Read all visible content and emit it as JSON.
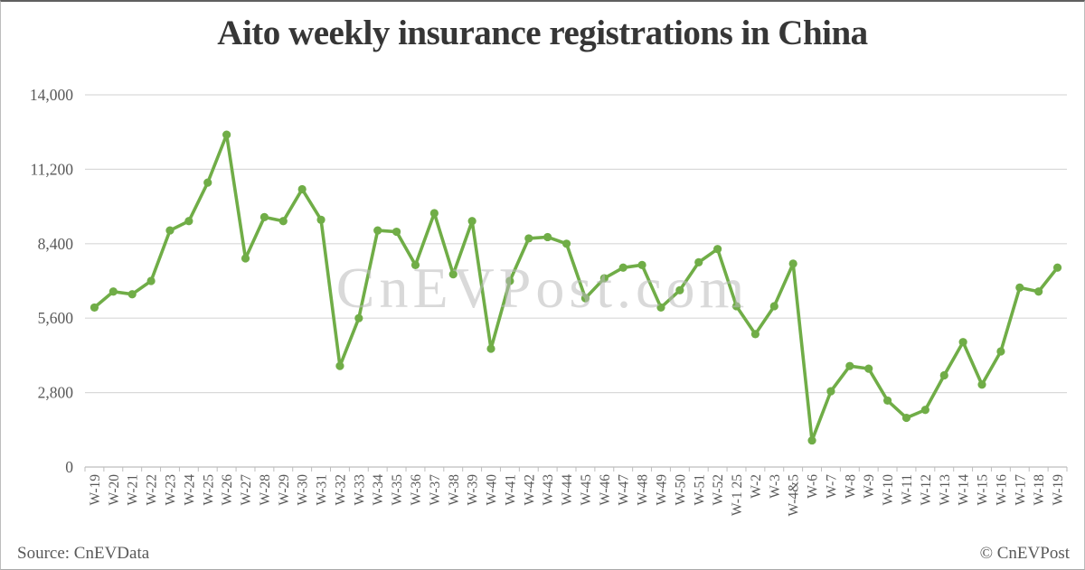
{
  "page": {
    "title": "Aito weekly insurance registrations in China"
  },
  "chart_data": {
    "type": "line",
    "title": "Aito weekly insurance registrations in China",
    "categories": [
      "W-19",
      "W-20",
      "W-21",
      "W-22",
      "W-23",
      "W-24",
      "W-25",
      "W-26",
      "W-27",
      "W-28",
      "W-29",
      "W-30",
      "W-31",
      "W-32",
      "W-33",
      "W-34",
      "W-35",
      "W-36",
      "W-37",
      "W-38",
      "W-39",
      "W-40",
      "W-41",
      "W-42",
      "W-43",
      "W-44",
      "W-45",
      "W-46",
      "W-47",
      "W-48",
      "W-49",
      "W-50",
      "W-51",
      "W-52",
      "W-1 25",
      "W-2",
      "W-3",
      "W-4&5",
      "W-6",
      "W-7",
      "W-8",
      "W-9",
      "W-10",
      "W-11",
      "W-12",
      "W-13",
      "W-14",
      "W-15",
      "W-16",
      "W-17",
      "W-18",
      "W-19"
    ],
    "values": [
      6000,
      6600,
      6500,
      7000,
      8900,
      9250,
      10700,
      12500,
      7850,
      9400,
      9250,
      10450,
      9300,
      3800,
      5600,
      8900,
      8850,
      7600,
      9550,
      7250,
      9250,
      4450,
      7000,
      8600,
      8650,
      8400,
      6350,
      7100,
      7500,
      7600,
      6000,
      6650,
      7700,
      8200,
      6050,
      5000,
      6050,
      7650,
      1000,
      2850,
      3800,
      3700,
      2500,
      1850,
      2150,
      3450,
      4700,
      3100,
      4350,
      6750,
      6600,
      7500
    ],
    "xlabel": "",
    "ylabel": "",
    "ylim": [
      0,
      14000
    ],
    "y_tick_labels": [
      "0",
      "2,800",
      "5,600",
      "8,400",
      "11,200",
      "14,000"
    ],
    "grid": true,
    "legend": "none",
    "line_color": "#70ad47",
    "grid_color": "#d9d9d9",
    "axis_color": "#bdbdbd",
    "marker": "circle",
    "watermark": "CnEVPost.com"
  },
  "footer": {
    "source": "Source: CnEVData",
    "credit": "© CnEVPost"
  }
}
